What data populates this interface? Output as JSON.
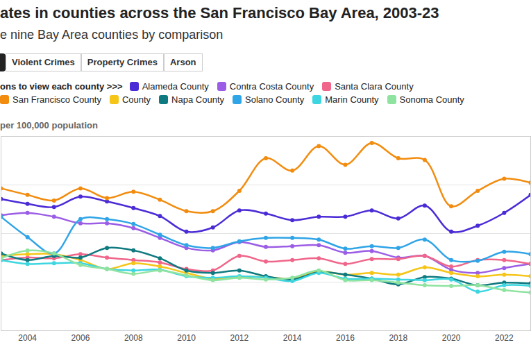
{
  "chart_data": {
    "type": "line",
    "title": "ates in counties across the San Francisco Bay Area, 2003-23",
    "subtitle": "e nine Bay Area counties by comparison",
    "buttons": [
      "Violent Crimes",
      "Property Crimes",
      "Arson"
    ],
    "legend_title": "ons to view each county >>>",
    "ylabel": "per 100,000 population",
    "x": [
      2003,
      2004,
      2005,
      2006,
      2007,
      2008,
      2009,
      2010,
      2011,
      2012,
      2013,
      2014,
      2015,
      2016,
      2017,
      2018,
      2019,
      2020,
      2021,
      2022,
      2023
    ],
    "xlim": [
      2003,
      2023
    ],
    "xticks": [
      2004,
      2006,
      2008,
      2010,
      2012,
      2014,
      2016,
      2018,
      2020,
      2022
    ],
    "ylim": [
      0,
      8000
    ],
    "yticks": [
      0,
      2000,
      4000,
      6000,
      8000
    ],
    "grid": true,
    "tick_labels": "x",
    "marker": "circle",
    "line_style": "solid",
    "series": [
      {
        "name": "Alameda County",
        "color": "#4b2bd6",
        "values": [
          5420,
          5220,
          5090,
          5520,
          5320,
          5050,
          4720,
          4080,
          4250,
          4950,
          4820,
          4550,
          4690,
          4690,
          4950,
          4620,
          5150,
          4080,
          4320,
          4850,
          5590
        ]
      },
      {
        "name": "Contra Costa County",
        "color": "#9b5de5",
        "values": [
          4750,
          4850,
          4690,
          4420,
          4420,
          4220,
          3820,
          3410,
          3310,
          3650,
          3450,
          3480,
          3520,
          3210,
          3280,
          3010,
          3080,
          2510,
          2380,
          2580,
          2750
        ]
      },
      {
        "name": "Santa Clara County",
        "color": "#f0668a",
        "values": [
          2910,
          3010,
          2980,
          3150,
          3010,
          2910,
          2810,
          2540,
          2480,
          3080,
          2850,
          2910,
          2980,
          2750,
          2950,
          2950,
          3080,
          2640,
          2910,
          2910,
          2750
        ]
      },
      {
        "name": "San Francisco County",
        "color": "#f28c0f",
        "values": [
          5860,
          5590,
          5360,
          5860,
          5460,
          5720,
          5390,
          4920,
          4920,
          5760,
          7100,
          6590,
          7600,
          6830,
          7730,
          7100,
          7030,
          5120,
          5760,
          6260,
          6090
        ]
      },
      {
        "name": "County",
        "color": "#f5c518",
        "values": [
          3080,
          3150,
          3150,
          2910,
          2540,
          2780,
          2640,
          2380,
          2140,
          2210,
          2210,
          2140,
          2440,
          2310,
          2380,
          2310,
          2610,
          2380,
          2240,
          2310,
          2240
        ]
      },
      {
        "name": "Napa County",
        "color": "#0f7a80",
        "values": [
          3180,
          2910,
          3080,
          3010,
          3410,
          3310,
          2980,
          2480,
          2380,
          2480,
          2240,
          2110,
          2410,
          2310,
          2140,
          1910,
          2210,
          2140,
          1870,
          1980,
          1940
        ]
      },
      {
        "name": "Solano County",
        "color": "#2fa4e7",
        "values": [
          4690,
          3850,
          3180,
          4590,
          4590,
          4390,
          3950,
          3520,
          3410,
          3680,
          3820,
          3820,
          3750,
          3380,
          3480,
          3410,
          3750,
          2910,
          2880,
          3250,
          3150
        ]
      },
      {
        "name": "Marin County",
        "color": "#3dd6e0",
        "values": [
          2910,
          2750,
          2780,
          2780,
          2540,
          2480,
          2510,
          2240,
          2180,
          2240,
          2180,
          2040,
          2380,
          2140,
          2140,
          2110,
          2080,
          2110,
          1610,
          1870,
          1840
        ]
      },
      {
        "name": "Sonoma County",
        "color": "#8fe3a0",
        "values": [
          2980,
          3300,
          3180,
          2710,
          2540,
          2340,
          2480,
          2280,
          2080,
          2180,
          2110,
          2180,
          2480,
          2080,
          2080,
          1980,
          1870,
          1840,
          1870,
          1670,
          1570
        ]
      }
    ]
  }
}
